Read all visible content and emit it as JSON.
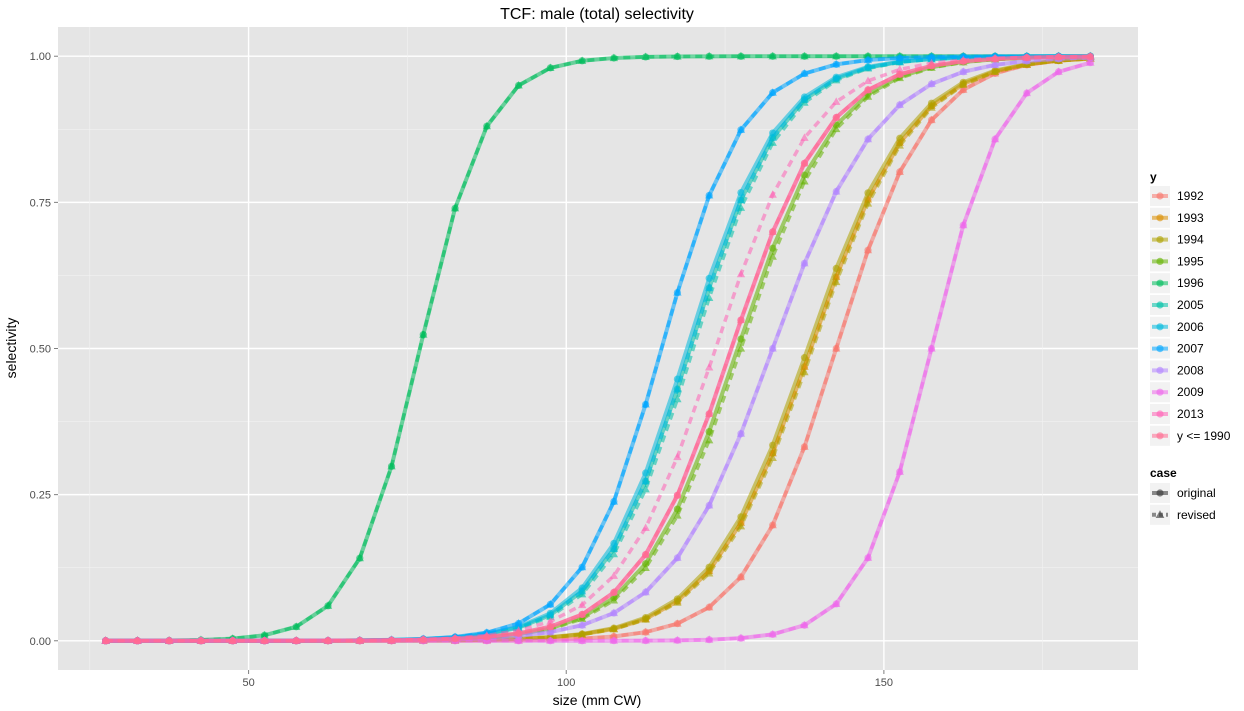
{
  "chart_data": {
    "type": "line",
    "title": "TCF: male (total) selectivity",
    "xlabel": "size (mm CW)",
    "ylabel": "selectivity",
    "xlim": [
      20,
      190
    ],
    "ylim": [
      -0.05,
      1.05
    ],
    "x_ticks": [
      50,
      100,
      150
    ],
    "x_tick_labels": [
      "50",
      "100",
      "150"
    ],
    "y_ticks": [
      0,
      0.25,
      0.5,
      0.75,
      1
    ],
    "y_tick_labels": [
      "0.00",
      "0.25",
      "0.50",
      "0.75",
      "1.00"
    ],
    "grid": true,
    "legend_position": "right",
    "legend_year_title": "y",
    "legend_case_title": "case",
    "case_labels": [
      "original",
      "revised"
    ],
    "x": [
      27.5,
      32.5,
      37.5,
      42.5,
      47.5,
      52.5,
      57.5,
      62.5,
      67.5,
      72.5,
      77.5,
      82.5,
      87.5,
      92.5,
      97.5,
      102.5,
      107.5,
      112.5,
      117.5,
      122.5,
      127.5,
      132.5,
      137.5,
      142.5,
      147.5,
      152.5,
      157.5,
      162.5,
      167.5,
      172.5,
      177.5,
      182.5
    ],
    "series": [
      {
        "name": "1992",
        "color": "#F8766D",
        "x50": 142.5,
        "slope": 0.14,
        "x50_revised": 142.5
      },
      {
        "name": "1993",
        "color": "#DB8E00",
        "x50": 138.5,
        "slope": 0.125,
        "x50_revised": 138.5
      },
      {
        "name": "1994",
        "color": "#AEA200",
        "x50": 138.0,
        "slope": 0.125,
        "x50_revised": 138.8
      },
      {
        "name": "1995",
        "color": "#64B200",
        "x50": 127.0,
        "slope": 0.13,
        "x50_revised": 127.5
      },
      {
        "name": "1996",
        "color": "#00BD5C",
        "x50": 77.0,
        "slope": 0.19,
        "x50_revised": 77.0
      },
      {
        "name": "2005",
        "color": "#00C1A7",
        "x50": 119.5,
        "slope": 0.14,
        "x50_revised": 120.0
      },
      {
        "name": "2006",
        "color": "#00BADE",
        "x50": 119.0,
        "slope": 0.14,
        "x50_revised": 119.5
      },
      {
        "name": "2007",
        "color": "#00A6FF",
        "x50": 115.0,
        "slope": 0.155,
        "x50_revised": 115.0
      },
      {
        "name": "2008",
        "color": "#B385FF",
        "x50": 132.5,
        "slope": 0.12,
        "x50_revised": 132.5
      },
      {
        "name": "2009",
        "color": "#EF67EB",
        "x50": 157.5,
        "slope": 0.18,
        "x50_revised": 157.5
      },
      {
        "name": "2013",
        "color": "#FF63B6",
        "x50": 126.0,
        "slope": 0.13,
        "x50_revised": 123.5
      },
      {
        "name": "y <= 1990",
        "color": "#FF6C91",
        "x50": 126.0,
        "slope": 0.13,
        "x50_revised": 126.0
      }
    ]
  }
}
